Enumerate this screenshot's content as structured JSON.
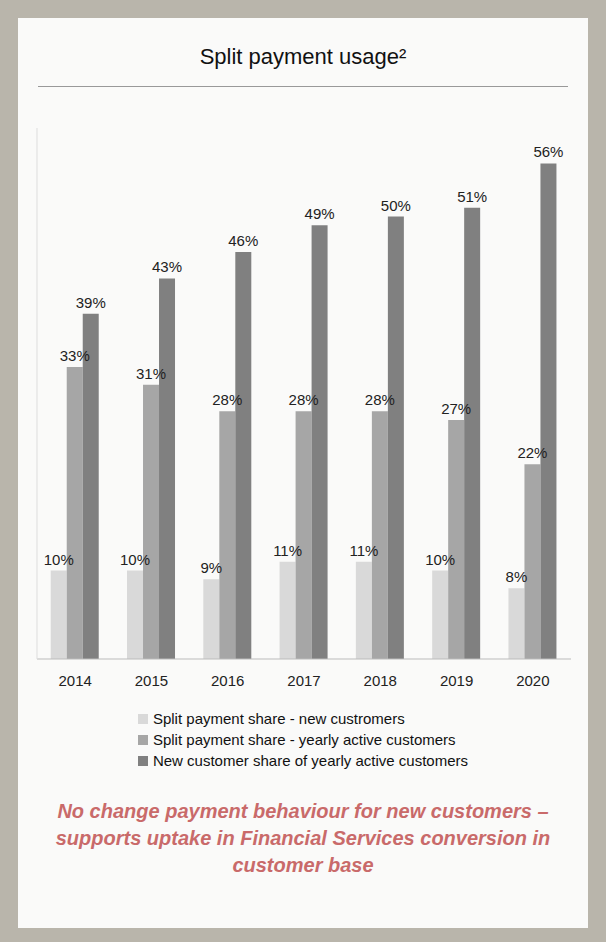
{
  "chart_data": {
    "type": "bar",
    "title": "Split payment usage²",
    "categories": [
      "2014",
      "2015",
      "2016",
      "2017",
      "2018",
      "2019",
      "2020"
    ],
    "series": [
      {
        "name": "Split payment share - new custromers",
        "color": "#d9d9d9",
        "values": [
          10,
          10,
          9,
          11,
          11,
          10,
          8
        ],
        "value_labels": [
          "10%",
          "10%",
          "9%",
          "11%",
          "11%",
          "10%",
          "8%"
        ]
      },
      {
        "name": "Split payment share - yearly active customers",
        "color": "#a6a6a6",
        "values": [
          33,
          31,
          28,
          28,
          28,
          27,
          22
        ],
        "value_labels": [
          "33%",
          "31%",
          "28%",
          "28%",
          "28%",
          "27%",
          "22%"
        ]
      },
      {
        "name": "New customer share of yearly active customers",
        "color": "#808080",
        "values": [
          39,
          43,
          46,
          49,
          50,
          51,
          56
        ],
        "value_labels": [
          "39%",
          "43%",
          "46%",
          "49%",
          "50%",
          "51%",
          "56%"
        ]
      }
    ],
    "ylim": [
      0,
      60
    ],
    "tick_labels": "x",
    "data_labels": true,
    "legend": "bottom",
    "annotation": "No change payment behaviour for new customers – supports uptake in Financial Services conversion in customer base"
  }
}
